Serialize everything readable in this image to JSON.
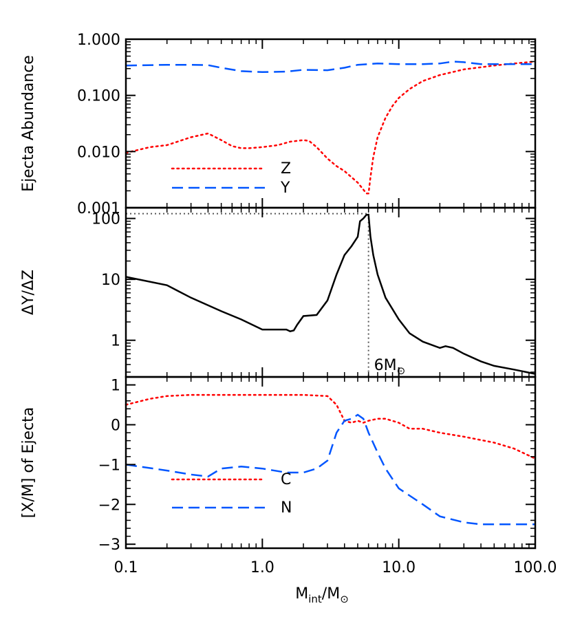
{
  "chart_data": {
    "type": "line",
    "shared_x": {
      "scale": "log",
      "xlim": [
        0.1,
        100.0
      ],
      "ticks": [
        0.1,
        1.0,
        10.0,
        100.0
      ],
      "tick_labels": [
        "0.1",
        "1.0",
        "10.0",
        "100.0"
      ],
      "label_base": "M",
      "label_sub1": "int",
      "label_mid": "/M",
      "label_sun": "⊙"
    },
    "panels": [
      {
        "id": "abundance",
        "ylabel": "Ejecta Abundance",
        "yscale": "log",
        "ylim": [
          0.001,
          1.0
        ],
        "yticks": [
          0.001,
          0.01,
          0.1,
          1.0
        ],
        "ytick_labels": [
          "0.001",
          "0.010",
          "0.100",
          "1.000"
        ],
        "legend": [
          {
            "label": "Z",
            "series": 0
          },
          {
            "label": "Y",
            "series": 1
          }
        ],
        "series": [
          {
            "name": "Z",
            "color": "#ff0000",
            "style": "dotted",
            "x": [
              0.1,
              0.15,
              0.2,
              0.3,
              0.4,
              0.5,
              0.6,
              0.7,
              0.8,
              1.0,
              1.3,
              1.6,
              2.0,
              2.2,
              2.5,
              3.0,
              3.5,
              4.0,
              4.5,
              5.0,
              5.5,
              5.8,
              6.0,
              6.2,
              6.5,
              7.0,
              8.0,
              9.0,
              10.0,
              12.0,
              15.0,
              20.0,
              30.0,
              50.0,
              70.0,
              100.0
            ],
            "y": [
              0.0095,
              0.012,
              0.013,
              0.018,
              0.021,
              0.016,
              0.0125,
              0.0115,
              0.0115,
              0.012,
              0.013,
              0.015,
              0.016,
              0.0155,
              0.012,
              0.0075,
              0.0055,
              0.0045,
              0.0035,
              0.0028,
              0.0021,
              0.0018,
              0.0018,
              0.0035,
              0.008,
              0.018,
              0.04,
              0.065,
              0.09,
              0.13,
              0.18,
              0.23,
              0.29,
              0.34,
              0.37,
              0.4
            ]
          },
          {
            "name": "Y",
            "color": "#0055ff",
            "style": "dashed",
            "x": [
              0.1,
              0.2,
              0.3,
              0.4,
              0.5,
              0.7,
              1.0,
              1.5,
              2.0,
              3.0,
              4.0,
              5.0,
              7.0,
              10.0,
              15.0,
              20.0,
              25.0,
              30.0,
              40.0,
              60.0,
              100.0
            ],
            "y": [
              0.34,
              0.35,
              0.35,
              0.345,
              0.31,
              0.27,
              0.26,
              0.265,
              0.285,
              0.28,
              0.31,
              0.35,
              0.37,
              0.36,
              0.36,
              0.37,
              0.4,
              0.39,
              0.36,
              0.36,
              0.36
            ]
          }
        ]
      },
      {
        "id": "dydz",
        "ylabel": "ΔY/ΔZ",
        "yscale": "log",
        "ylim": [
          0.25,
          150
        ],
        "yticks": [
          1,
          10,
          100
        ],
        "ytick_labels": [
          "1",
          "10",
          "100"
        ],
        "annotation": {
          "text": "6M",
          "sun": "⊙",
          "x": 6.0,
          "y_peak": 120
        },
        "series": [
          {
            "name": "",
            "color": "#000000",
            "style": "solid",
            "x": [
              0.1,
              0.2,
              0.3,
              0.5,
              0.7,
              1.0,
              1.2,
              1.5,
              1.6,
              1.7,
              1.8,
              2.0,
              2.5,
              3.0,
              3.5,
              4.0,
              4.5,
              5.0,
              5.2,
              5.5,
              5.8,
              6.0,
              6.2,
              6.5,
              7.0,
              8.0,
              10.0,
              12.0,
              15.0,
              20.0,
              22.0,
              25.0,
              30.0,
              40.0,
              50.0,
              70.0,
              100.0
            ],
            "y": [
              11,
              8,
              5,
              3,
              2.2,
              1.5,
              1.5,
              1.5,
              1.4,
              1.45,
              1.8,
              2.5,
              2.6,
              4.5,
              12,
              25,
              35,
              50,
              90,
              100,
              115,
              115,
              50,
              25,
              12,
              5,
              2.2,
              1.3,
              0.95,
              0.75,
              0.8,
              0.75,
              0.6,
              0.45,
              0.38,
              0.33,
              0.28
            ]
          }
        ],
        "guides": {
          "style": "dotted",
          "color": "#555555"
        }
      },
      {
        "id": "xm",
        "ylabel": "[X/M] of Ejecta",
        "yscale": "linear",
        "ylim": [
          -3.1,
          1.2
        ],
        "yticks": [
          -3,
          -2,
          -1,
          0,
          1
        ],
        "ytick_labels": [
          "−3",
          "−2",
          "−1",
          "0",
          "1"
        ],
        "legend": [
          {
            "label": "C",
            "series": 0
          },
          {
            "label": "N",
            "series": 1
          }
        ],
        "series": [
          {
            "name": "C",
            "color": "#ff0000",
            "style": "dotted",
            "x": [
              0.1,
              0.15,
              0.2,
              0.3,
              0.5,
              0.7,
              1.0,
              1.5,
              2.0,
              3.0,
              3.5,
              4.0,
              4.5,
              5.0,
              5.5,
              6.0,
              7.0,
              8.0,
              10.0,
              12.0,
              15.0,
              20.0,
              30.0,
              50.0,
              70.0,
              100.0
            ],
            "y": [
              0.5,
              0.65,
              0.72,
              0.75,
              0.75,
              0.75,
              0.75,
              0.75,
              0.75,
              0.72,
              0.5,
              0.1,
              0.05,
              0.1,
              0.05,
              0.1,
              0.15,
              0.15,
              0.05,
              -0.1,
              -0.1,
              -0.2,
              -0.3,
              -0.45,
              -0.6,
              -0.85
            ]
          },
          {
            "name": "N",
            "color": "#0055ff",
            "style": "dashed",
            "x": [
              0.1,
              0.2,
              0.3,
              0.4,
              0.5,
              0.7,
              1.0,
              1.5,
              2.0,
              2.5,
              3.0,
              3.5,
              4.0,
              4.5,
              5.0,
              5.5,
              6.0,
              7.0,
              8.0,
              10.0,
              15.0,
              20.0,
              30.0,
              40.0,
              60.0,
              100.0
            ],
            "y": [
              -1.0,
              -1.15,
              -1.25,
              -1.3,
              -1.1,
              -1.05,
              -1.1,
              -1.2,
              -1.2,
              -1.1,
              -0.9,
              -0.2,
              0.1,
              0.15,
              0.25,
              0.15,
              -0.2,
              -0.7,
              -1.1,
              -1.6,
              -2.0,
              -2.3,
              -2.45,
              -2.5,
              -2.5,
              -2.5
            ]
          }
        ]
      }
    ]
  }
}
